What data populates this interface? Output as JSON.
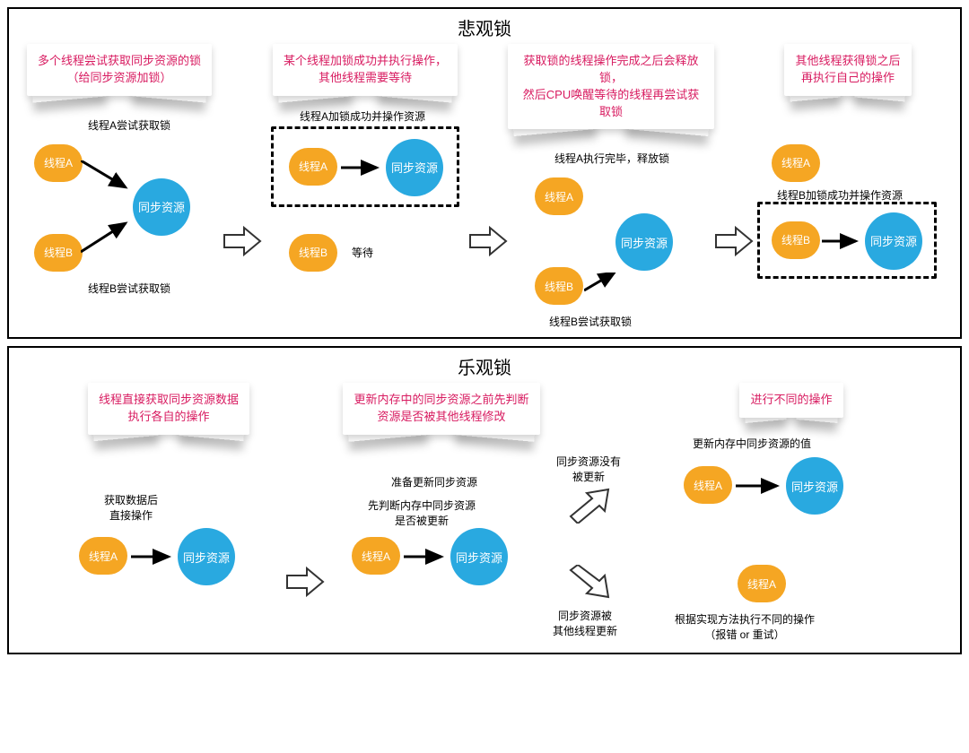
{
  "colors": {
    "thread": "#f5a623",
    "resource": "#29a9e0",
    "caption_text": "#d81b60",
    "border": "#000000",
    "bg": "#ffffff"
  },
  "pessimistic": {
    "title": "悲观锁",
    "steps": [
      {
        "caption": "多个线程尝试获取同步资源的锁\n（给同步资源加锁）",
        "labels": {
          "top": "线程A尝试获取锁",
          "bottom": "线程B尝试获取锁"
        },
        "nodes": {
          "a": "线程A",
          "b": "线程B",
          "r": "同步资源"
        }
      },
      {
        "caption": "某个线程加锁成功并执行操作，\n其他线程需要等待",
        "labels": {
          "box": "线程A加锁成功并操作资源",
          "wait": "等待"
        },
        "nodes": {
          "a": "线程A",
          "b": "线程B",
          "r": "同步资源"
        }
      },
      {
        "caption": "获取锁的线程操作完成之后会释放锁，\n然后CPU唤醒等待的线程再尝试获取锁",
        "labels": {
          "top": "线程A执行完毕，释放锁",
          "bottom": "线程B尝试获取锁"
        },
        "nodes": {
          "a": "线程A",
          "b": "线程B",
          "r": "同步资源"
        }
      },
      {
        "caption": "其他线程获得锁之后\n再执行自己的操作",
        "labels": {
          "box": "线程B加锁成功并操作资源"
        },
        "nodes": {
          "a": "线程A",
          "b": "线程B",
          "r": "同步资源"
        }
      }
    ]
  },
  "optimistic": {
    "title": "乐观锁",
    "steps": [
      {
        "caption": "线程直接获取同步资源数据\n执行各自的操作",
        "labels": {
          "top": "获取数据后\n直接操作"
        },
        "nodes": {
          "a": "线程A",
          "r": "同步资源"
        }
      },
      {
        "caption": "更新内存中的同步资源之前先判断\n资源是否被其他线程修改",
        "labels": {
          "top": "准备更新同步资源",
          "mid": "先判断内存中同步资源\n是否被更新"
        },
        "nodes": {
          "a": "线程A",
          "r": "同步资源"
        }
      },
      {
        "caption": "进行不同的操作",
        "labels": {
          "branch_top": "同步资源没有\n被更新",
          "branch_bottom": "同步资源被\n其他线程更新",
          "out_top": "更新内存中同步资源的值",
          "out_bottom": "根据实现方法执行不同的操作\n（报错 or 重试）"
        },
        "nodes": {
          "a": "线程A",
          "r": "同步资源",
          "a2": "线程A"
        }
      }
    ]
  }
}
